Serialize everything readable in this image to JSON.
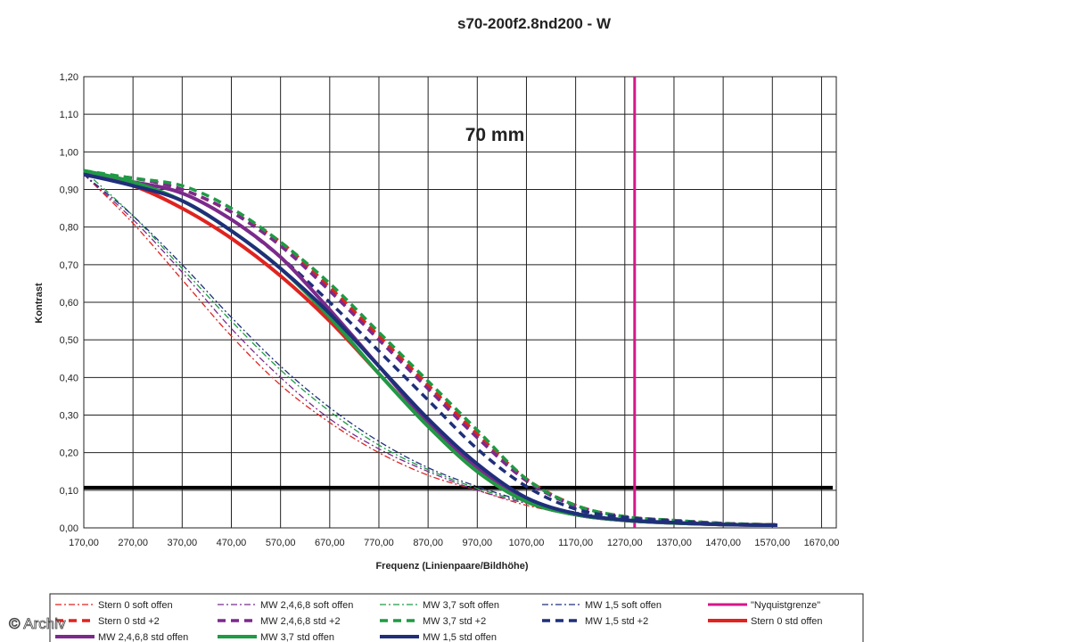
{
  "chart_data": {
    "type": "line",
    "title": "s70-200f2.8nd200 - W",
    "annotation": "70 mm",
    "xlabel": "Frequenz (Linienpaare/Bildhöhe)",
    "ylabel": "Kontrast",
    "xlim": [
      170,
      1700
    ],
    "ylim": [
      0,
      1.2
    ],
    "x_ticks": [
      "170,00",
      "270,00",
      "370,00",
      "470,00",
      "570,00",
      "670,00",
      "770,00",
      "870,00",
      "970,00",
      "1070,00",
      "1170,00",
      "1270,00",
      "1370,00",
      "1470,00",
      "1570,00",
      "1670,00"
    ],
    "y_ticks": [
      "0,00",
      "0,10",
      "0,20",
      "0,30",
      "0,40",
      "0,50",
      "0,60",
      "0,70",
      "0,80",
      "0,90",
      "1,00",
      "1,10",
      "1,20"
    ],
    "grid": true,
    "legend_position": "bottom",
    "reference_lines": [
      {
        "orientation": "horizontal",
        "value": 0.107,
        "color": "#000000"
      },
      {
        "orientation": "vertical",
        "value": 1290,
        "color": "#d6168a"
      }
    ],
    "series": [
      {
        "name": "Stern 0 soft offen",
        "color": "#e0231f",
        "style": "dashdot",
        "width": 1.3,
        "x": [
          170,
          270,
          370,
          470,
          570,
          670,
          770,
          870,
          970,
          1070,
          1170,
          1270,
          1370,
          1470,
          1580
        ],
        "y": [
          0.94,
          0.81,
          0.66,
          0.51,
          0.38,
          0.28,
          0.2,
          0.14,
          0.1,
          0.06,
          0.035,
          0.02,
          0.015,
          0.01,
          0.008
        ]
      },
      {
        "name": "MW 2,4,6,8 soft offen",
        "color": "#7b2a8c",
        "style": "dashdot",
        "width": 1.3,
        "x": [
          170,
          270,
          370,
          470,
          570,
          670,
          770,
          870,
          970,
          1070,
          1170,
          1270,
          1370,
          1470,
          1580
        ],
        "y": [
          0.94,
          0.82,
          0.68,
          0.53,
          0.4,
          0.29,
          0.21,
          0.15,
          0.1,
          0.065,
          0.04,
          0.022,
          0.015,
          0.01,
          0.008
        ]
      },
      {
        "name": "MW 3,7 soft offen",
        "color": "#1f9a45",
        "style": "dashdot",
        "width": 1.3,
        "x": [
          170,
          270,
          370,
          470,
          570,
          670,
          770,
          870,
          970,
          1070,
          1170,
          1270,
          1370,
          1470,
          1580
        ],
        "y": [
          0.95,
          0.83,
          0.69,
          0.55,
          0.42,
          0.31,
          0.22,
          0.155,
          0.105,
          0.068,
          0.04,
          0.022,
          0.015,
          0.01,
          0.008
        ]
      },
      {
        "name": "MW 1,5 soft offen",
        "color": "#1f2f7a",
        "style": "dashdot",
        "width": 1.3,
        "x": [
          170,
          270,
          370,
          470,
          570,
          670,
          770,
          870,
          970,
          1070,
          1170,
          1270,
          1370,
          1470,
          1580
        ],
        "y": [
          0.94,
          0.83,
          0.7,
          0.56,
          0.43,
          0.32,
          0.23,
          0.16,
          0.11,
          0.07,
          0.042,
          0.023,
          0.015,
          0.01,
          0.008
        ]
      },
      {
        "name": "\"Nyquistgrenze\"",
        "color": "#d6168a",
        "style": "solid",
        "width": 3,
        "x": [
          1290,
          1290
        ],
        "y": [
          0,
          1.2
        ]
      },
      {
        "name": "Stern 0 std +2",
        "color": "#e0231f",
        "style": "dash",
        "width": 3.5,
        "x": [
          170,
          270,
          370,
          470,
          570,
          670,
          770,
          870,
          970,
          1070,
          1170,
          1270,
          1370,
          1470,
          1580
        ],
        "y": [
          0.94,
          0.93,
          0.9,
          0.84,
          0.76,
          0.64,
          0.51,
          0.38,
          0.25,
          0.13,
          0.06,
          0.03,
          0.02,
          0.012,
          0.008
        ]
      },
      {
        "name": "MW 2,4,6,8 std +2",
        "color": "#7b2a8c",
        "style": "dash",
        "width": 3.5,
        "x": [
          170,
          270,
          370,
          470,
          570,
          670,
          770,
          870,
          970,
          1070,
          1170,
          1270,
          1370,
          1470,
          1580
        ],
        "y": [
          0.94,
          0.93,
          0.9,
          0.84,
          0.75,
          0.63,
          0.5,
          0.37,
          0.24,
          0.125,
          0.058,
          0.03,
          0.02,
          0.012,
          0.008
        ]
      },
      {
        "name": "MW 3,7 std +2",
        "color": "#1f9a45",
        "style": "dash",
        "width": 3.5,
        "x": [
          170,
          270,
          370,
          470,
          570,
          670,
          770,
          870,
          970,
          1070,
          1170,
          1270,
          1370,
          1470,
          1580
        ],
        "y": [
          0.95,
          0.93,
          0.91,
          0.85,
          0.76,
          0.65,
          0.52,
          0.39,
          0.26,
          0.13,
          0.06,
          0.03,
          0.02,
          0.012,
          0.008
        ]
      },
      {
        "name": "MW 1,5 std +2",
        "color": "#1f2f7a",
        "style": "dash",
        "width": 3.5,
        "x": [
          170,
          270,
          370,
          470,
          570,
          670,
          770,
          870,
          970,
          1070,
          1170,
          1270,
          1370,
          1470,
          1580
        ],
        "y": [
          0.94,
          0.92,
          0.89,
          0.82,
          0.72,
          0.6,
          0.47,
          0.34,
          0.21,
          0.11,
          0.05,
          0.028,
          0.018,
          0.011,
          0.008
        ]
      },
      {
        "name": "Stern 0 std offen",
        "color": "#e0231f",
        "style": "solid",
        "width": 4,
        "x": [
          170,
          270,
          370,
          470,
          570,
          670,
          770,
          870,
          970,
          1070,
          1170,
          1270,
          1370,
          1470,
          1580
        ],
        "y": [
          0.94,
          0.91,
          0.85,
          0.77,
          0.67,
          0.55,
          0.41,
          0.27,
          0.15,
          0.07,
          0.035,
          0.02,
          0.013,
          0.009,
          0.007
        ]
      },
      {
        "name": "MW 2,4,6,8 std offen",
        "color": "#7b2a8c",
        "style": "solid",
        "width": 4,
        "x": [
          170,
          270,
          370,
          470,
          570,
          670,
          770,
          870,
          970,
          1070,
          1170,
          1270,
          1370,
          1470,
          1580
        ],
        "y": [
          0.94,
          0.92,
          0.89,
          0.82,
          0.72,
          0.58,
          0.43,
          0.28,
          0.16,
          0.075,
          0.035,
          0.02,
          0.013,
          0.009,
          0.007
        ]
      },
      {
        "name": "MW 3,7 std offen",
        "color": "#1f9a45",
        "style": "solid",
        "width": 4,
        "x": [
          170,
          270,
          370,
          470,
          570,
          670,
          770,
          870,
          970,
          1070,
          1170,
          1270,
          1370,
          1470,
          1580
        ],
        "y": [
          0.95,
          0.92,
          0.87,
          0.79,
          0.69,
          0.56,
          0.41,
          0.27,
          0.15,
          0.07,
          0.035,
          0.02,
          0.013,
          0.009,
          0.007
        ]
      },
      {
        "name": "MW 1,5 std offen",
        "color": "#1f2f7a",
        "style": "solid",
        "width": 4,
        "x": [
          170,
          270,
          370,
          470,
          570,
          670,
          770,
          870,
          970,
          1070,
          1170,
          1270,
          1370,
          1470,
          1580
        ],
        "y": [
          0.94,
          0.91,
          0.87,
          0.79,
          0.69,
          0.57,
          0.43,
          0.29,
          0.17,
          0.08,
          0.038,
          0.021,
          0.014,
          0.009,
          0.007
        ]
      }
    ]
  },
  "watermark": "© Archiv"
}
